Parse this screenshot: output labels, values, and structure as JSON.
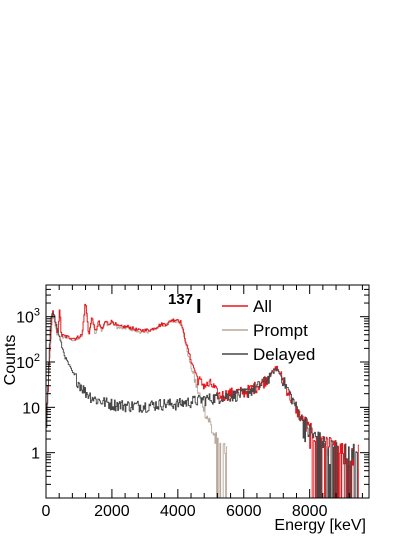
{
  "chart_data": {
    "type": "line",
    "title": "",
    "xlabel": "Energy [keV]",
    "ylabel": "Counts",
    "xlim": [
      0,
      9800
    ],
    "ylim": [
      0.1,
      5000
    ],
    "yscale": "log",
    "grid": false,
    "legend_position": "top-right",
    "x_tick_labels": [
      "0",
      "2000",
      "4000",
      "6000",
      "8000"
    ],
    "x_tick_values": [
      0,
      2000,
      4000,
      6000,
      8000
    ],
    "y_tick_labels": [
      {
        "base": "1",
        "exp": ""
      },
      {
        "base": "10",
        "exp": ""
      },
      {
        "base": "10",
        "exp": "2"
      },
      {
        "base": "10",
        "exp": "3"
      }
    ],
    "y_tick_values": [
      1,
      10,
      100,
      1000
    ],
    "annotation": {
      "mass": "137",
      "symbol": "I"
    },
    "series": [
      {
        "name": "All",
        "color": "#e8161c",
        "x": [
          0,
          100,
          150,
          200,
          280,
          350,
          420,
          470,
          550,
          700,
          900,
          1100,
          1200,
          1300,
          1400,
          1500,
          1600,
          1700,
          1800,
          1900,
          2000,
          2200,
          2500,
          2800,
          3000,
          3200,
          3500,
          3700,
          3800,
          3900,
          4000,
          4100,
          4200,
          4300,
          4400,
          4500,
          4600,
          4700,
          4800,
          4900,
          5000,
          5100,
          5200,
          5300,
          5500,
          5800,
          6000,
          6200,
          6400,
          6600,
          6800,
          7000,
          7100,
          7200,
          7400,
          7600,
          7800,
          8000,
          8200,
          8500,
          9000,
          9500
        ],
        "y": [
          3,
          120,
          500,
          1400,
          800,
          420,
          1500,
          380,
          380,
          350,
          330,
          400,
          2200,
          400,
          1000,
          450,
          800,
          500,
          800,
          700,
          800,
          600,
          600,
          500,
          500,
          520,
          680,
          700,
          850,
          850,
          880,
          750,
          380,
          200,
          110,
          70,
          45,
          35,
          32,
          30,
          33,
          27,
          20,
          18,
          20,
          22,
          22,
          25,
          30,
          37,
          52,
          80,
          55,
          40,
          18,
          9,
          5,
          3,
          2,
          1.5,
          1,
          1
        ]
      },
      {
        "name": "Prompt",
        "color": "#b9a99c",
        "x": [
          0,
          100,
          150,
          200,
          280,
          350,
          420,
          470,
          550,
          700,
          900,
          1100,
          1200,
          1300,
          1400,
          1500,
          1600,
          1700,
          1800,
          1900,
          2000,
          2200,
          2500,
          2800,
          3000,
          3200,
          3500,
          3700,
          3800,
          3900,
          4000,
          4100,
          4200,
          4300,
          4400,
          4500,
          4600,
          4700,
          4800,
          4900,
          5000,
          5100,
          5200,
          5300,
          5500
        ],
        "y": [
          2,
          80,
          380,
          1100,
          650,
          380,
          1200,
          360,
          360,
          330,
          300,
          380,
          2100,
          380,
          950,
          420,
          760,
          470,
          760,
          650,
          750,
          560,
          560,
          470,
          470,
          490,
          640,
          660,
          800,
          800,
          830,
          700,
          340,
          160,
          80,
          45,
          25,
          15,
          10,
          6,
          4,
          2.5,
          1.5,
          1,
          1
        ]
      },
      {
        "name": "Delayed",
        "color": "#474747",
        "x": [
          0,
          100,
          150,
          200,
          250,
          300,
          400,
          500,
          600,
          800,
          1000,
          1200,
          1500,
          1800,
          2000,
          2500,
          3000,
          3500,
          4000,
          4500,
          5000,
          5500,
          6000,
          6400,
          6600,
          6800,
          6900,
          7000,
          7100,
          7200,
          7400,
          7600,
          7800,
          8000,
          8200,
          8500,
          9000,
          9500
        ],
        "y": [
          2,
          150,
          900,
          1400,
          1100,
          700,
          380,
          200,
          120,
          60,
          35,
          22,
          15,
          13,
          12,
          11,
          11,
          12,
          12,
          14,
          16,
          18,
          20,
          28,
          35,
          50,
          60,
          70,
          55,
          40,
          20,
          10,
          5,
          3,
          2,
          1.5,
          1,
          1
        ]
      }
    ]
  }
}
